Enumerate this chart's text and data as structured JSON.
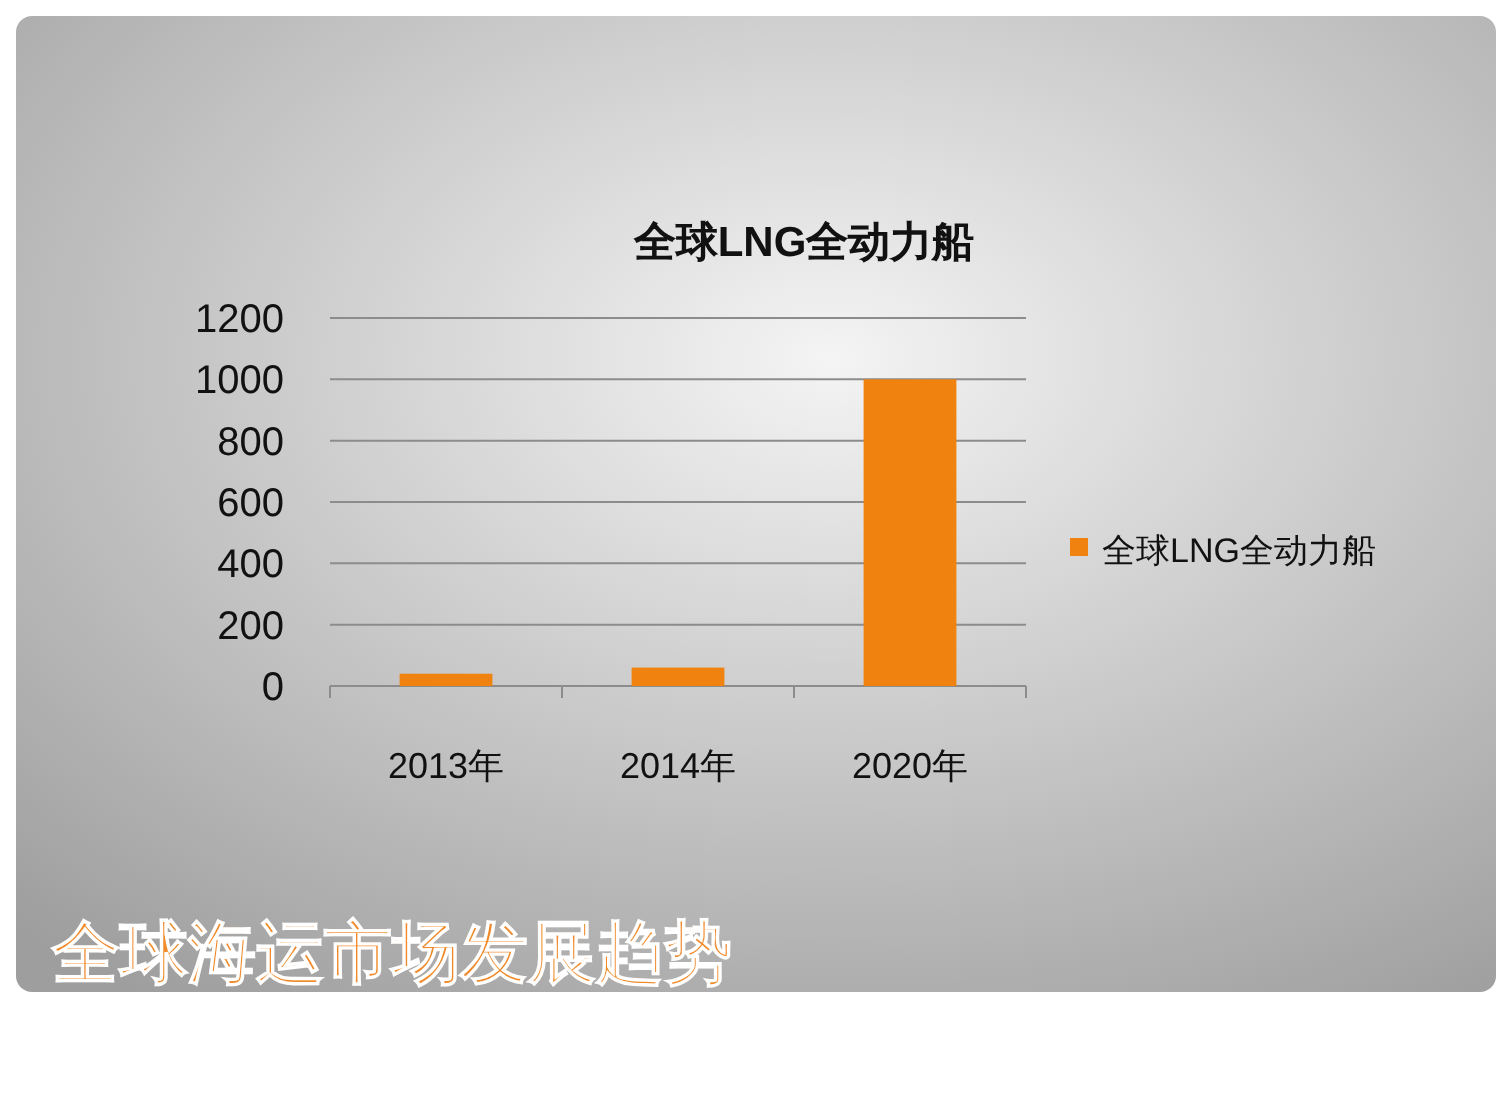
{
  "chart_data": {
    "type": "bar",
    "title": "全球LNG全动力船",
    "categories": [
      "2013年",
      "2014年",
      "2020年"
    ],
    "series": [
      {
        "name": "全球LNG全动力船",
        "color": "#f0820f",
        "values": [
          40,
          60,
          1000
        ]
      }
    ],
    "ylim": [
      0,
      1200
    ],
    "yticks": [
      0,
      200,
      400,
      600,
      800,
      1000,
      1200
    ],
    "grid": "y",
    "legend": "right",
    "annotations": [
      "全球海运市场发展趋势"
    ]
  }
}
